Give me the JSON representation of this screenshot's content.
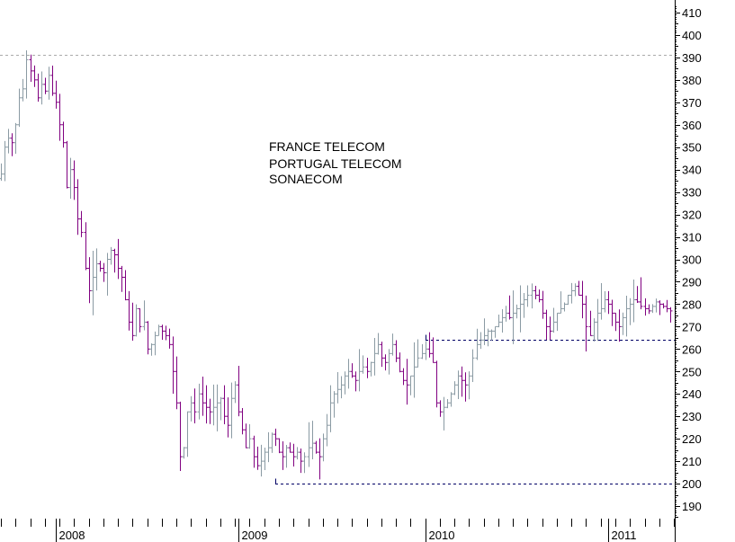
{
  "chart_data": {
    "type": "ohlc-bar",
    "annotation_lines": [
      "FRANCE TELECOM",
      "PORTUGAL TELECOM",
      "SONAECOM"
    ],
    "ylim": [
      185,
      413
    ],
    "yticks": [
      190,
      200,
      210,
      220,
      230,
      240,
      250,
      260,
      270,
      280,
      290,
      300,
      310,
      320,
      330,
      340,
      350,
      360,
      370,
      380,
      390,
      400,
      410
    ],
    "y_axis_position": "right",
    "x_range_weeks": [
      0,
      183
    ],
    "x_year_labels": [
      {
        "label": "2008",
        "week": 15
      },
      {
        "label": "2009",
        "week": 65
      },
      {
        "label": "2010",
        "week": 116
      },
      {
        "label": "2011",
        "week": 166
      }
    ],
    "reference_lines": [
      {
        "value": 391,
        "from_week": 0,
        "to_week": 183,
        "color": "#aaaaaa"
      },
      {
        "value": 264,
        "from_week": 116,
        "to_week": 183,
        "color": "#000066"
      },
      {
        "value": 200,
        "from_week": 75,
        "to_week": 183,
        "color": "#000066"
      }
    ],
    "bar_colors": {
      "up": "#8a9aa3",
      "down": "#800080"
    },
    "grid": false,
    "legend": "none",
    "close_series_weekly": [
      338,
      350,
      354,
      352,
      360,
      372,
      376,
      389,
      384,
      380,
      372,
      378,
      375,
      382,
      374,
      370,
      360,
      352,
      332,
      340,
      332,
      318,
      312,
      296,
      286,
      292,
      298,
      296,
      294,
      300,
      304,
      302,
      296,
      292,
      282,
      272,
      266,
      278,
      270,
      272,
      260,
      262,
      266,
      270,
      268,
      266,
      262,
      250,
      236,
      212,
      216,
      232,
      236,
      232,
      240,
      236,
      234,
      232,
      234,
      236,
      238,
      230,
      226,
      238,
      244,
      232,
      224,
      216,
      220,
      212,
      208,
      210,
      214,
      216,
      222,
      220,
      214,
      212,
      216,
      214,
      212,
      214,
      210,
      212,
      216,
      218,
      214,
      212,
      220,
      226,
      236,
      240,
      242,
      244,
      248,
      250,
      248,
      246,
      250,
      252,
      250,
      254,
      258,
      262,
      256,
      254,
      258,
      262,
      256,
      250,
      246,
      244,
      248,
      252,
      256,
      258,
      260,
      258,
      254,
      236,
      232,
      234,
      236,
      240,
      244,
      248,
      246,
      244,
      248,
      256,
      262,
      264,
      266,
      268,
      268,
      270,
      272,
      274,
      276,
      274,
      276,
      278,
      280,
      282,
      284,
      286,
      284,
      282,
      276,
      270,
      268,
      272,
      276,
      278,
      280,
      284,
      286,
      288,
      284,
      280,
      270,
      266,
      272,
      276,
      278,
      282,
      280,
      276,
      272,
      270,
      274,
      278,
      280,
      282,
      281,
      279,
      278,
      277,
      279,
      281,
      280,
      279,
      278,
      277
    ]
  }
}
